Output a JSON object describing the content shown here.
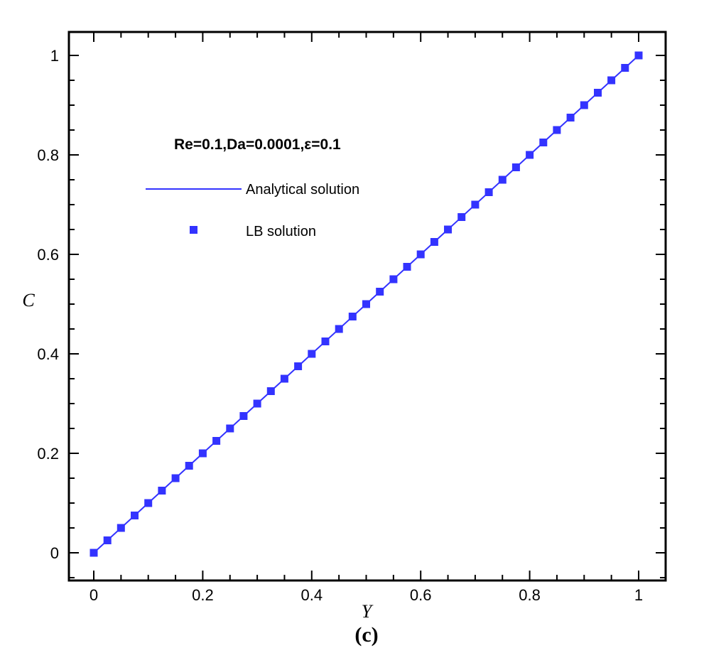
{
  "chart_data": {
    "type": "line",
    "title": "",
    "xlabel": "Y",
    "ylabel": "C",
    "caption": "(c)",
    "xlim": [
      -0.04,
      1.05
    ],
    "ylim": [
      -0.04,
      1.05
    ],
    "xticks": [
      0,
      0.2,
      0.4,
      0.6,
      0.8,
      1
    ],
    "yticks": [
      0,
      0.2,
      0.4,
      0.6,
      0.8,
      1
    ],
    "xtick_labels": [
      "0",
      "0.2",
      "0.4",
      "0.6",
      "0.8",
      "1"
    ],
    "ytick_labels": [
      "0",
      "0.2",
      "0.4",
      "0.6",
      "0.8",
      "1"
    ],
    "grid": false,
    "legend": {
      "placement": "top-left",
      "title": "Re=0.1,Da=0.0001,ε=0.1",
      "entries": [
        {
          "label": "Analytical solution",
          "style": "line"
        },
        {
          "label": "LB solution",
          "style": "square-marker"
        }
      ]
    },
    "color": "#3333ff",
    "series": [
      {
        "name": "Analytical solution",
        "style": "line",
        "x": [
          0,
          1
        ],
        "y": [
          0,
          1
        ]
      },
      {
        "name": "LB solution",
        "style": "markers",
        "x": [
          0,
          0.025,
          0.05,
          0.075,
          0.1,
          0.125,
          0.15,
          0.175,
          0.2,
          0.225,
          0.25,
          0.275,
          0.3,
          0.325,
          0.35,
          0.375,
          0.4,
          0.425,
          0.45,
          0.475,
          0.5,
          0.525,
          0.55,
          0.575,
          0.6,
          0.625,
          0.65,
          0.675,
          0.7,
          0.725,
          0.75,
          0.775,
          0.8,
          0.825,
          0.85,
          0.875,
          0.9,
          0.925,
          0.95,
          0.975,
          1
        ],
        "y": [
          0,
          0.025,
          0.05,
          0.075,
          0.1,
          0.125,
          0.15,
          0.175,
          0.2,
          0.225,
          0.25,
          0.275,
          0.3,
          0.325,
          0.35,
          0.375,
          0.4,
          0.425,
          0.45,
          0.475,
          0.5,
          0.525,
          0.55,
          0.575,
          0.6,
          0.625,
          0.65,
          0.675,
          0.7,
          0.725,
          0.75,
          0.775,
          0.8,
          0.825,
          0.85,
          0.875,
          0.9,
          0.925,
          0.95,
          0.975,
          1
        ]
      }
    ]
  }
}
